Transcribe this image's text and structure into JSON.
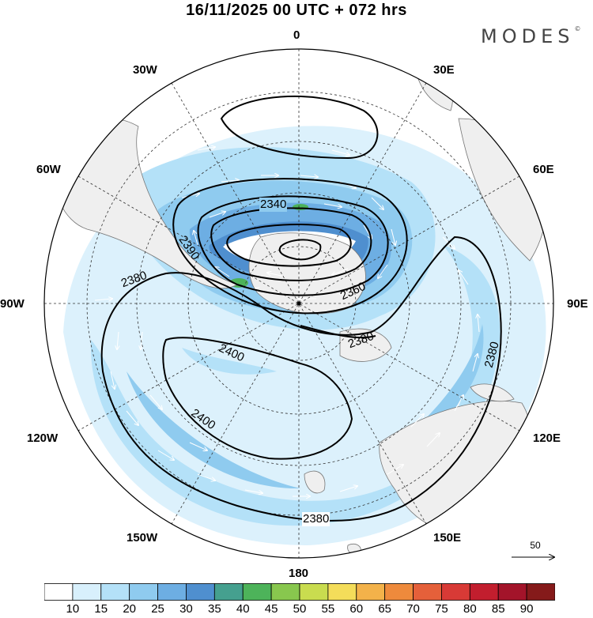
{
  "title": "16/11/2025  00 UTC  + 072 hrs",
  "brand": "MODES",
  "brand_mark": "©",
  "longitude_labels": {
    "n0": "0",
    "n30e": "30E",
    "n60e": "60E",
    "n90e": "90E",
    "n120e": "120E",
    "n150e": "150E",
    "n180": "180",
    "n150w": "150W",
    "n120w": "120W",
    "n90w": "90W",
    "n60w": "60W",
    "n30w": "30W"
  },
  "contour_labels": {
    "c2340": "2340",
    "c2360": "2360",
    "c2380a": "2380",
    "c2380b": "2380",
    "c2380c": "2380",
    "c2380d": "2380",
    "c2390": "2390",
    "c2400a": "2400",
    "c2400b": "2400"
  },
  "reference_vector": "50",
  "colorbar": {
    "ticks": [
      "10",
      "15",
      "20",
      "25",
      "30",
      "35",
      "40",
      "45",
      "50",
      "55",
      "60",
      "65",
      "70",
      "75",
      "80",
      "85",
      "90"
    ],
    "colors": [
      "#ffffff",
      "#d8f0fc",
      "#b4e1f8",
      "#8fcbef",
      "#6daee3",
      "#4f8fcf",
      "#45a08f",
      "#4db35a",
      "#88c74e",
      "#c9dc4f",
      "#f4dd5a",
      "#f3b24a",
      "#ee8a3c",
      "#e5603a",
      "#d83a36",
      "#c21e2e",
      "#a3142a",
      "#851a1a"
    ]
  }
}
